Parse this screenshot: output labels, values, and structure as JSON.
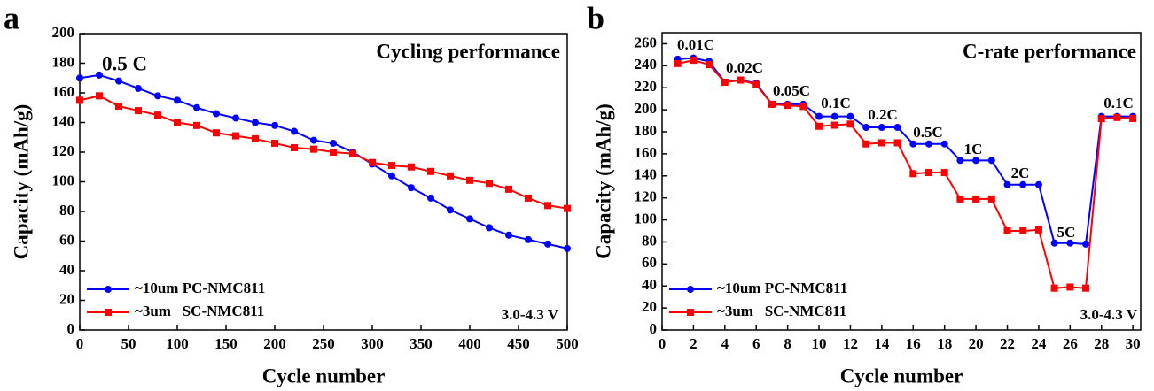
{
  "chart_data": [
    {
      "type": "line",
      "panel_label": "a",
      "title": "Cycling performance",
      "annotations": [
        "0.5 C"
      ],
      "note": "3.0-4.3 V",
      "xlabel": "Cycle number",
      "ylabel": "Capacity (mAh/g)",
      "xlim": [
        0,
        500
      ],
      "ylim": [
        0,
        200
      ],
      "xticks": [
        0,
        50,
        100,
        150,
        200,
        250,
        300,
        350,
        400,
        450,
        500
      ],
      "yticks": [
        0,
        20,
        40,
        60,
        80,
        100,
        120,
        140,
        160,
        180,
        200
      ],
      "legend": "lower left",
      "x": [
        0,
        20,
        40,
        60,
        80,
        100,
        120,
        140,
        160,
        180,
        200,
        220,
        240,
        260,
        280,
        300,
        320,
        340,
        360,
        380,
        400,
        420,
        440,
        460,
        480,
        500
      ],
      "series": [
        {
          "name": "~10um PC-NMC811",
          "color": "#0000ff",
          "marker": "circle",
          "values": [
            170,
            172,
            168,
            163,
            158,
            155,
            150,
            146,
            143,
            140,
            138,
            134,
            128,
            126,
            120,
            112,
            104,
            96,
            89,
            81,
            75,
            69,
            64,
            61,
            58,
            55
          ]
        },
        {
          "name": "~3um   SC-NMC811",
          "color": "#ff0000",
          "marker": "square",
          "values": [
            155,
            158,
            151,
            148,
            145,
            140,
            138,
            133,
            131,
            129,
            126,
            123,
            122,
            120,
            119,
            113,
            111,
            110,
            107,
            104,
            101,
            99,
            95,
            89,
            84,
            82
          ]
        }
      ]
    },
    {
      "type": "line",
      "panel_label": "b",
      "title": "C-rate performance",
      "annotations": [
        "0.01C",
        "0.02C",
        "0.05C",
        "0.1C",
        "0.2C",
        "0.5C",
        "1C",
        "2C",
        "5C",
        "0.1C"
      ],
      "note": "3.0-4.3 V",
      "xlabel": "Cycle number",
      "ylabel": "Capacity (mAh/g)",
      "xlim": [
        0,
        30.5
      ],
      "ylim": [
        0,
        270
      ],
      "xticks": [
        0,
        2,
        4,
        6,
        8,
        10,
        12,
        14,
        16,
        18,
        20,
        22,
        24,
        26,
        28,
        30
      ],
      "yticks": [
        0,
        20,
        40,
        60,
        80,
        100,
        120,
        140,
        160,
        180,
        200,
        220,
        240,
        260
      ],
      "legend": "lower left",
      "x": [
        1,
        2,
        3,
        4,
        5,
        6,
        7,
        8,
        9,
        10,
        11,
        12,
        13,
        14,
        15,
        16,
        17,
        18,
        19,
        20,
        21,
        22,
        23,
        24,
        25,
        26,
        27,
        28,
        29,
        30
      ],
      "series": [
        {
          "name": "~10um PC-NMC811",
          "color": "#0000ff",
          "marker": "circle",
          "values": [
            246,
            247,
            244,
            225,
            227,
            224,
            205,
            205,
            205,
            194,
            194,
            194,
            184,
            184,
            184,
            169,
            169,
            169,
            154,
            154,
            154,
            132,
            132,
            132,
            79,
            79,
            78,
            194,
            194,
            194
          ]
        },
        {
          "name": "~3um   SC-NMC811",
          "color": "#ff0000",
          "marker": "square",
          "values": [
            242,
            245,
            241,
            225,
            227,
            223,
            205,
            204,
            203,
            185,
            186,
            187,
            169,
            170,
            170,
            142,
            143,
            143,
            119,
            119,
            119,
            90,
            90,
            91,
            38,
            39,
            38,
            192,
            193,
            192
          ]
        }
      ]
    }
  ]
}
